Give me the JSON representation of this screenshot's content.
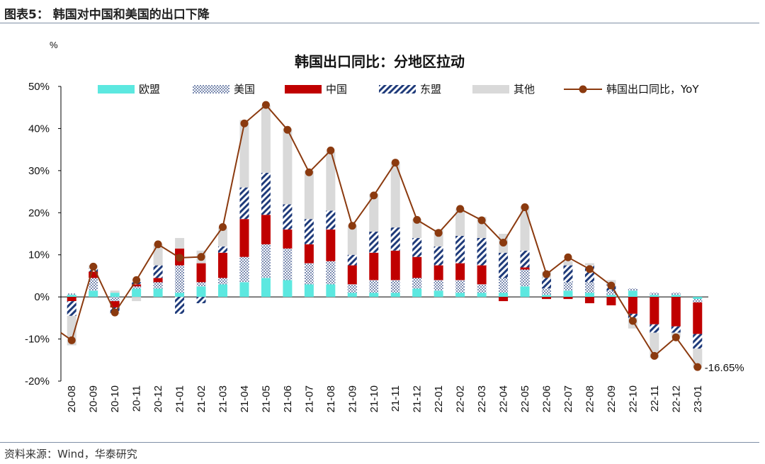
{
  "header": {
    "figure_title": "图表5：  韩国对中国和美国的出口下降"
  },
  "footer": {
    "source": "资料来源：Wind，华泰研究"
  },
  "colors": {
    "eu": "#5ce8e0",
    "us": "#1f3b7a",
    "china": "#c00000",
    "asean": "#1f3b7a",
    "other": "#d9d9d9",
    "line": "#8b3a0f",
    "axis": "#000000"
  },
  "chart_data": {
    "type": "bar",
    "stacked": true,
    "title": "韩国出口同比：分地区拉动",
    "unit_label": "%",
    "ylim": [
      -20,
      50
    ],
    "y_ticks": [
      "-20%",
      "-10%",
      "0%",
      "10%",
      "20%",
      "30%",
      "40%",
      "50%"
    ],
    "legend_position": "top",
    "annotation": "-16.65%",
    "categories": [
      "20-08",
      "20-09",
      "20-10",
      "20-11",
      "20-12",
      "21-01",
      "21-02",
      "21-03",
      "21-04",
      "21-05",
      "21-06",
      "21-07",
      "21-08",
      "21-09",
      "21-10",
      "21-11",
      "21-12",
      "22-01",
      "22-02",
      "22-03",
      "22-04",
      "22-05",
      "22-06",
      "22-07",
      "22-08",
      "22-09",
      "22-10",
      "22-11",
      "22-12",
      "23-01"
    ],
    "series": [
      {
        "name": "欧盟",
        "values": [
          0.5,
          1.5,
          1.0,
          2.0,
          2.0,
          1.0,
          2.5,
          3.0,
          3.5,
          4.5,
          4.0,
          3.0,
          3.0,
          1.0,
          1.0,
          1.0,
          2.0,
          1.5,
          1.0,
          1.0,
          1.0,
          2.5,
          0.5,
          1.5,
          1.0,
          0.5,
          1.5,
          0.5,
          0.5,
          -0.5
        ]
      },
      {
        "name": "美国",
        "values": [
          0.3,
          3.0,
          -1.0,
          0.5,
          1.5,
          6.5,
          1.0,
          1.5,
          6.0,
          8.0,
          7.5,
          5.0,
          5.5,
          2.0,
          3.0,
          3.0,
          2.5,
          2.5,
          3.0,
          2.0,
          3.5,
          4.0,
          1.5,
          2.0,
          2.5,
          1.0,
          0.5,
          0.5,
          0.5,
          -0.8
        ]
      },
      {
        "name": "中国",
        "values": [
          -1.0,
          1.5,
          -1.5,
          0.5,
          1.0,
          4.0,
          4.5,
          6.0,
          9.0,
          7.0,
          4.5,
          4.5,
          7.5,
          4.5,
          6.5,
          7.0,
          5.0,
          3.5,
          4.0,
          4.5,
          -1.0,
          0.5,
          -0.5,
          -0.5,
          -1.5,
          -2.0,
          -4.0,
          -6.5,
          -7.0,
          -7.5
        ]
      },
      {
        "name": "东盟",
        "values": [
          -3.5,
          0.8,
          -1.5,
          0.5,
          3.0,
          -4.0,
          -1.5,
          1.5,
          7.5,
          10.0,
          6.0,
          6.0,
          4.5,
          2.5,
          5.0,
          5.5,
          4.5,
          4.5,
          6.5,
          6.5,
          6.0,
          4.0,
          2.5,
          4.0,
          4.0,
          1.5,
          -1.0,
          -2.0,
          -1.5,
          -3.5
        ]
      },
      {
        "name": "其他",
        "values": [
          -7.0,
          0.7,
          0.5,
          -1.0,
          5.0,
          2.5,
          3.0,
          4.5,
          16.0,
          16.0,
          18.0,
          11.5,
          14.0,
          7.0,
          9.0,
          15.5,
          4.5,
          4.0,
          6.5,
          5.0,
          4.5,
          10.5,
          1.5,
          1.0,
          0.5,
          1.0,
          -2.5,
          -6.0,
          -1.0,
          -4.5
        ]
      },
      {
        "name": "韩国出口同比，YoY",
        "type": "line",
        "values": [
          -10.3,
          7.2,
          -3.7,
          4.0,
          12.5,
          9.3,
          9.5,
          16.6,
          41.2,
          45.6,
          39.7,
          29.6,
          34.8,
          16.9,
          24.1,
          31.9,
          18.3,
          15.2,
          20.9,
          18.2,
          12.9,
          21.3,
          5.4,
          9.4,
          6.6,
          2.7,
          -5.7,
          -14.0,
          -9.6,
          -16.65
        ]
      }
    ]
  }
}
